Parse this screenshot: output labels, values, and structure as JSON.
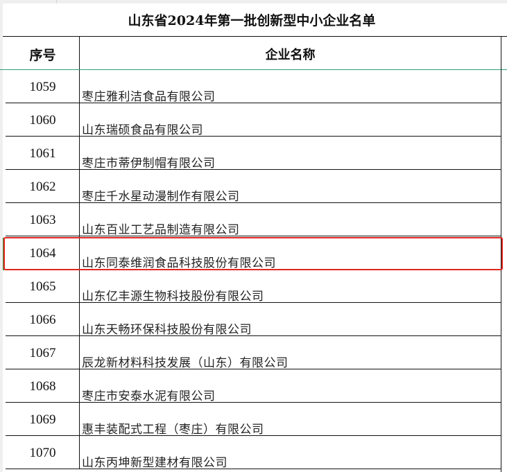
{
  "title": "山东省2024年第一批创新型中小企业名单",
  "headers": {
    "index": "序号",
    "name": "企业名称"
  },
  "rows": [
    {
      "index": "1059",
      "name": "枣庄雅利洁食品有限公司"
    },
    {
      "index": "1060",
      "name": "山东瑞硕食品有限公司"
    },
    {
      "index": "1061",
      "name": "枣庄市蒂伊制帽有限公司"
    },
    {
      "index": "1062",
      "name": "枣庄千水星动漫制作有限公司"
    },
    {
      "index": "1063",
      "name": "山东百业工艺品制造有限公司"
    },
    {
      "index": "1064",
      "name": "山东同泰维润食品科技股份有限公司"
    },
    {
      "index": "1065",
      "name": "山东亿丰源生物科技股份有限公司"
    },
    {
      "index": "1066",
      "name": "山东天畅环保科技股份有限公司"
    },
    {
      "index": "1067",
      "name": "辰龙新材料科技发展（山东）有限公司"
    },
    {
      "index": "1068",
      "name": "枣庄市安泰水泥有限公司"
    },
    {
      "index": "1069",
      "name": "惠丰装配式工程（枣庄）有限公司"
    },
    {
      "index": "1070",
      "name": "山东丙坤新型建材有限公司"
    }
  ],
  "highlighted_row": "1064",
  "colors": {
    "highlight": "#e0261f",
    "freeze_line": "#2e9d7a"
  }
}
